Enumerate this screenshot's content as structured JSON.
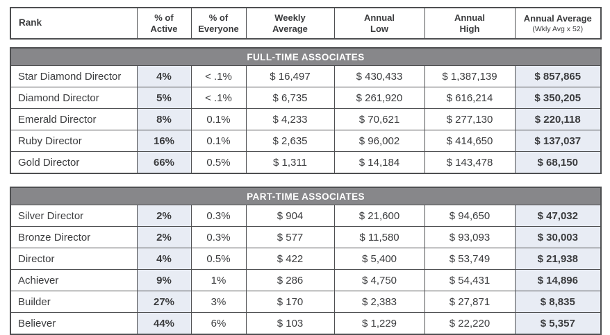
{
  "colors": {
    "band": "#87878a",
    "shade": "#e8ecf4",
    "border": "#4e4f51",
    "text": "#3b3c3e",
    "band_text": "#ffffff",
    "bg": "#ffffff"
  },
  "columns": [
    {
      "key": "rank",
      "label": "Rank",
      "shaded": false
    },
    {
      "key": "pct-active",
      "line1": "% of",
      "line2": "Active",
      "shaded": true
    },
    {
      "key": "pct-everyone",
      "line1": "% of",
      "line2": "Everyone",
      "shaded": false
    },
    {
      "key": "weekly-average",
      "line1": "Weekly",
      "line2": "Average",
      "shaded": false
    },
    {
      "key": "annual-low",
      "line1": "Annual",
      "line2": "Low",
      "shaded": false
    },
    {
      "key": "annual-high",
      "line1": "Annual",
      "line2": "High",
      "shaded": false
    },
    {
      "key": "annual-average",
      "label": "Annual Average",
      "sub": "(Wkly Avg x 52)",
      "shaded": true
    }
  ],
  "sections": [
    {
      "title": "FULL-TIME ASSOCIATES",
      "rows": [
        [
          "Star Diamond Director",
          "4%",
          "< .1%",
          "$ 16,497",
          "$ 430,433",
          "$ 1,387,139",
          "$ 857,865"
        ],
        [
          "Diamond Director",
          "5%",
          "< .1%",
          "$ 6,735",
          "$ 261,920",
          "$ 616,214",
          "$ 350,205"
        ],
        [
          "Emerald Director",
          "8%",
          "0.1%",
          "$ 4,233",
          "$ 70,621",
          "$ 277,130",
          "$ 220,118"
        ],
        [
          "Ruby Director",
          "16%",
          "0.1%",
          "$ 2,635",
          "$ 96,002",
          "$ 414,650",
          "$ 137,037"
        ],
        [
          "Gold Director",
          "66%",
          "0.5%",
          "$ 1,311",
          "$ 14,184",
          "$ 143,478",
          "$ 68,150"
        ]
      ]
    },
    {
      "title": "PART-TIME ASSOCIATES",
      "rows": [
        [
          "Silver Director",
          "2%",
          "0.3%",
          "$ 904",
          "$ 21,600",
          "$ 94,650",
          "$ 47,032"
        ],
        [
          "Bronze Director",
          "2%",
          "0.3%",
          "$ 577",
          "$ 11,580",
          "$ 93,093",
          "$ 30,003"
        ],
        [
          "Director",
          "4%",
          "0.5%",
          "$ 422",
          "$ 5,400",
          "$ 53,749",
          "$ 21,938"
        ],
        [
          "Achiever",
          "9%",
          "1%",
          "$ 286",
          "$ 4,750",
          "$ 54,431",
          "$ 14,896"
        ],
        [
          "Builder",
          "27%",
          "3%",
          "$ 170",
          "$ 2,383",
          "$ 27,871",
          "$ 8,835"
        ],
        [
          "Believer",
          "44%",
          "6%",
          "$ 103",
          "$ 1,229",
          "$ 22,220",
          "$ 5,357"
        ]
      ]
    }
  ]
}
